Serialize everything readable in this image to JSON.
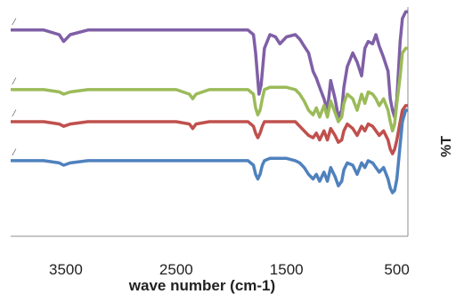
{
  "chart_data": {
    "type": "line",
    "title": "",
    "xlabel": "wave number (cm-1)",
    "ylabel": "%T",
    "xlim": [
      4000,
      400
    ],
    "x_reversed": true,
    "xticks": [
      3500,
      2500,
      1500,
      500
    ],
    "grid": false,
    "legend": "none",
    "series": [
      {
        "color": "#7F5FA6",
        "marker": "/",
        "x": [
          4000,
          3700,
          3560,
          3520,
          3460,
          3300,
          3000,
          2700,
          2400,
          2200,
          2000,
          1850,
          1800,
          1780,
          1750,
          1730,
          1700,
          1650,
          1600,
          1560,
          1500,
          1420,
          1380,
          1340,
          1300,
          1260,
          1230,
          1200,
          1160,
          1130,
          1100,
          1060,
          1030,
          1000,
          980,
          950,
          900,
          860,
          820,
          790,
          760,
          720,
          690,
          660,
          620,
          580,
          560,
          540,
          520,
          500,
          470,
          450,
          420,
          400
        ],
        "y": [
          0.9,
          0.9,
          0.88,
          0.85,
          0.88,
          0.9,
          0.9,
          0.9,
          0.9,
          0.9,
          0.9,
          0.9,
          0.88,
          0.8,
          0.62,
          0.66,
          0.82,
          0.88,
          0.87,
          0.84,
          0.87,
          0.88,
          0.86,
          0.83,
          0.8,
          0.72,
          0.69,
          0.65,
          0.6,
          0.55,
          0.68,
          0.6,
          0.52,
          0.55,
          0.65,
          0.74,
          0.8,
          0.76,
          0.7,
          0.82,
          0.85,
          0.84,
          0.88,
          0.83,
          0.78,
          0.72,
          0.6,
          0.55,
          0.52,
          0.6,
          0.85,
          0.95,
          0.98,
          0.98
        ]
      },
      {
        "color": "#9BBB59",
        "marker": "/",
        "x": [
          4000,
          3700,
          3560,
          3520,
          3460,
          3300,
          3000,
          2500,
          2380,
          2350,
          2320,
          2200,
          2000,
          1850,
          1800,
          1780,
          1760,
          1740,
          1720,
          1700,
          1650,
          1600,
          1500,
          1420,
          1380,
          1340,
          1300,
          1260,
          1230,
          1200,
          1160,
          1130,
          1100,
          1060,
          1030,
          1000,
          980,
          950,
          900,
          860,
          820,
          790,
          760,
          720,
          690,
          660,
          620,
          580,
          560,
          540,
          520,
          500,
          470,
          450,
          420,
          400
        ],
        "y": [
          0.64,
          0.64,
          0.63,
          0.62,
          0.63,
          0.64,
          0.64,
          0.64,
          0.62,
          0.6,
          0.62,
          0.64,
          0.64,
          0.64,
          0.62,
          0.56,
          0.53,
          0.55,
          0.6,
          0.64,
          0.65,
          0.65,
          0.65,
          0.64,
          0.62,
          0.59,
          0.55,
          0.53,
          0.56,
          0.52,
          0.57,
          0.52,
          0.59,
          0.54,
          0.5,
          0.52,
          0.58,
          0.62,
          0.6,
          0.55,
          0.62,
          0.58,
          0.63,
          0.62,
          0.6,
          0.57,
          0.6,
          0.55,
          0.5,
          0.46,
          0.49,
          0.58,
          0.7,
          0.8,
          0.82,
          0.82
        ]
      },
      {
        "color": "#C0504D",
        "marker": "/",
        "x": [
          4000,
          3700,
          3560,
          3520,
          3460,
          3300,
          3000,
          2500,
          2380,
          2350,
          2320,
          2200,
          2000,
          1850,
          1800,
          1780,
          1760,
          1740,
          1720,
          1700,
          1650,
          1600,
          1500,
          1420,
          1380,
          1340,
          1300,
          1260,
          1230,
          1200,
          1160,
          1130,
          1100,
          1060,
          1030,
          1000,
          980,
          950,
          900,
          860,
          820,
          790,
          760,
          720,
          690,
          660,
          620,
          580,
          560,
          540,
          520,
          500,
          470,
          450,
          420,
          400
        ],
        "y": [
          0.5,
          0.5,
          0.49,
          0.48,
          0.49,
          0.5,
          0.5,
          0.5,
          0.49,
          0.47,
          0.49,
          0.5,
          0.5,
          0.5,
          0.48,
          0.45,
          0.43,
          0.45,
          0.48,
          0.5,
          0.5,
          0.5,
          0.5,
          0.5,
          0.48,
          0.46,
          0.44,
          0.43,
          0.45,
          0.42,
          0.46,
          0.42,
          0.47,
          0.44,
          0.41,
          0.42,
          0.46,
          0.49,
          0.47,
          0.44,
          0.48,
          0.46,
          0.49,
          0.48,
          0.46,
          0.44,
          0.46,
          0.42,
          0.38,
          0.36,
          0.38,
          0.42,
          0.5,
          0.55,
          0.57,
          0.57
        ]
      },
      {
        "color": "#4F81BD",
        "marker": "/",
        "x": [
          4000,
          3700,
          3560,
          3520,
          3460,
          3300,
          3000,
          2500,
          2200,
          2000,
          1850,
          1800,
          1780,
          1760,
          1740,
          1720,
          1700,
          1650,
          1600,
          1500,
          1420,
          1380,
          1340,
          1300,
          1260,
          1230,
          1200,
          1160,
          1130,
          1100,
          1060,
          1030,
          1000,
          980,
          950,
          900,
          860,
          820,
          790,
          760,
          720,
          690,
          660,
          620,
          580,
          560,
          540,
          520,
          500,
          470,
          450,
          420,
          400
        ],
        "y": [
          0.33,
          0.33,
          0.32,
          0.31,
          0.32,
          0.33,
          0.33,
          0.33,
          0.33,
          0.33,
          0.33,
          0.31,
          0.27,
          0.25,
          0.27,
          0.31,
          0.33,
          0.34,
          0.34,
          0.34,
          0.33,
          0.32,
          0.3,
          0.27,
          0.25,
          0.27,
          0.24,
          0.28,
          0.24,
          0.3,
          0.26,
          0.22,
          0.24,
          0.29,
          0.32,
          0.31,
          0.27,
          0.32,
          0.3,
          0.33,
          0.32,
          0.3,
          0.28,
          0.3,
          0.25,
          0.21,
          0.19,
          0.2,
          0.25,
          0.4,
          0.5,
          0.55,
          0.55
        ]
      }
    ]
  }
}
